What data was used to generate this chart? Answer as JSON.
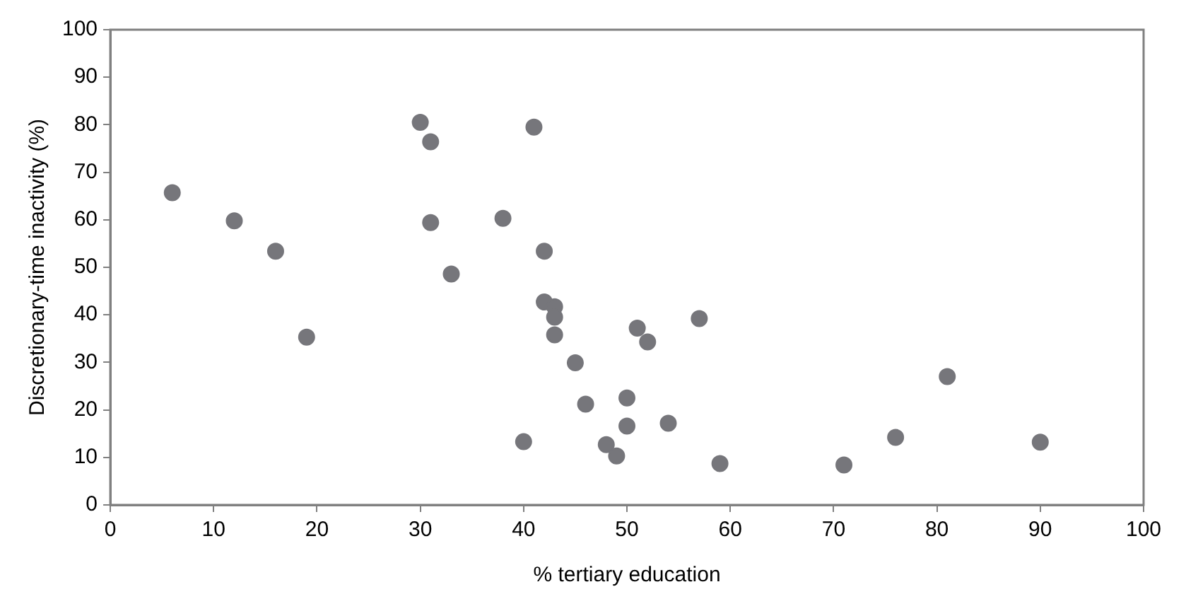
{
  "chart_data": {
    "type": "scatter",
    "xlabel": "% tertiary education",
    "ylabel": "Discretionary-time inactivity (%)",
    "x": [
      6,
      12,
      16,
      19,
      30,
      31,
      31,
      33,
      38,
      41,
      42,
      42,
      43,
      43,
      43,
      45,
      40,
      46,
      50,
      50,
      48,
      49,
      51,
      52,
      57,
      54,
      59,
      71,
      76,
      81,
      90
    ],
    "values": [
      65.7,
      59.8,
      53.4,
      35.3,
      80.5,
      76.4,
      59.4,
      48.6,
      60.3,
      79.5,
      53.4,
      42.7,
      41.7,
      39.5,
      35.8,
      29.9,
      13.3,
      21.2,
      22.5,
      16.6,
      12.7,
      10.3,
      37.2,
      34.3,
      39.2,
      17.2,
      8.7,
      8.4,
      14.2,
      27,
      13.2
    ],
    "color": "#76767b",
    "marker": "circle",
    "grid": false,
    "legend": false,
    "xlim": [
      0,
      100
    ],
    "xticks": [
      0,
      10,
      20,
      30,
      40,
      50,
      60,
      70,
      80,
      90,
      100
    ],
    "ylim": [
      0,
      100
    ],
    "yticks": [
      0,
      10,
      20,
      30,
      40,
      50,
      60,
      70,
      80,
      90,
      100
    ]
  }
}
